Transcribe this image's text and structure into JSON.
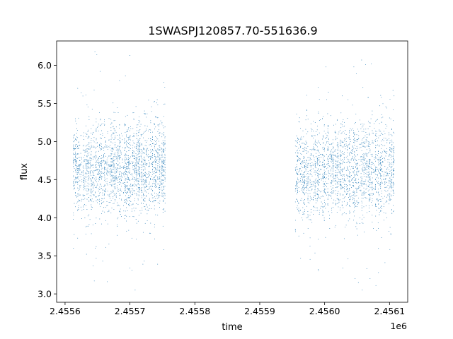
{
  "chart_data": {
    "type": "scatter",
    "title": "1SWASPJ120857.70-551636.9",
    "xlabel": "time",
    "ylabel": "flux",
    "x_offset_label": "1e6",
    "xlim": [
      2455587,
      2456128
    ],
    "ylim": [
      2.89,
      6.32
    ],
    "xticks": [
      2455600,
      2455700,
      2455800,
      2455900,
      2456000,
      2456100
    ],
    "xtick_labels": [
      "2.4556",
      "2.4557",
      "2.4558",
      "2.4559",
      "2.4560",
      "2.4561"
    ],
    "yticks": [
      3.0,
      3.5,
      4.0,
      4.5,
      5.0,
      5.5,
      6.0
    ],
    "ytick_labels": [
      "3.0",
      "3.5",
      "4.0",
      "4.5",
      "5.0",
      "5.5",
      "6.0"
    ],
    "grid": false,
    "marker_color": "#1f77b4",
    "series": [
      {
        "segments": [
          {
            "x_start": 2455613,
            "x_end": 2455754,
            "median": 4.65,
            "spread": 0.32
          },
          {
            "x_start": 2455955,
            "x_end": 2456107,
            "median": 4.62,
            "spread": 0.34
          }
        ],
        "points": [
          [
            2455646,
            6.18
          ],
          [
            2455649,
            6.14
          ],
          [
            2455700,
            6.13
          ],
          [
            2455654,
            5.92
          ],
          [
            2455625,
            5.64
          ],
          [
            2455742,
            5.55
          ],
          [
            2455737,
            5.52
          ],
          [
            2455684,
            5.8
          ],
          [
            2455693,
            5.86
          ],
          [
            2455614,
            3.78
          ],
          [
            2455613,
            3.6
          ],
          [
            2455633,
            3.52
          ],
          [
            2455648,
            3.47
          ],
          [
            2455658,
            3.43
          ],
          [
            2455665,
            3.16
          ],
          [
            2455645,
            3.17
          ],
          [
            2455700,
            3.34
          ],
          [
            2455703,
            3.31
          ],
          [
            2455722,
            3.43
          ],
          [
            2455720,
            3.39
          ],
          [
            2455708,
            3.05
          ],
          [
            2455752,
            3.58
          ],
          [
            2456002,
            5.98
          ],
          [
            2456027,
            5.6
          ],
          [
            2456036,
            5.55
          ],
          [
            2456049,
            5.89
          ],
          [
            2456057,
            6.07
          ],
          [
            2456063,
            6.01
          ],
          [
            2456072,
            6.02
          ],
          [
            2456067,
            5.58
          ],
          [
            2456045,
            5.98
          ],
          [
            2456085,
            5.47
          ],
          [
            2456100,
            5.31
          ],
          [
            2456107,
            5.6
          ],
          [
            2456028,
            3.34
          ],
          [
            2456036,
            3.46
          ],
          [
            2456047,
            3.2
          ],
          [
            2456052,
            3.15
          ],
          [
            2456058,
            3.05
          ],
          [
            2456065,
            3.33
          ],
          [
            2456070,
            3.2
          ],
          [
            2456079,
            3.11
          ],
          [
            2456083,
            3.28
          ],
          [
            2456093,
            3.41
          ],
          [
            2455963,
            3.47
          ]
        ]
      }
    ]
  }
}
